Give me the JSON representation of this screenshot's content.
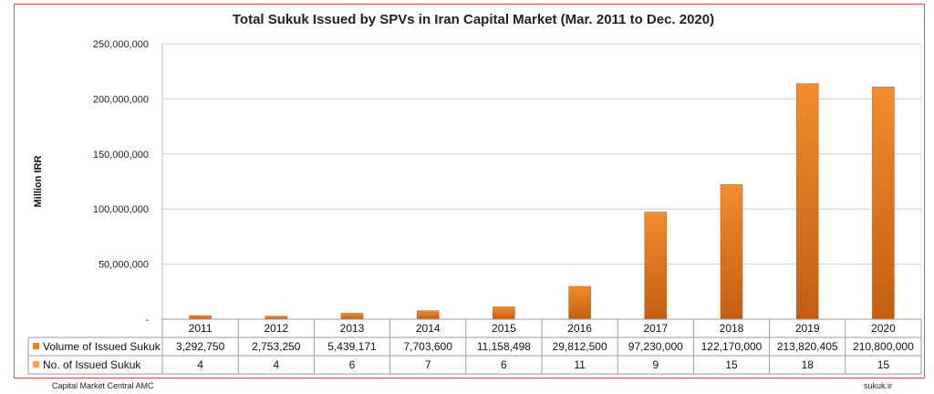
{
  "chart_data": {
    "type": "bar",
    "title": "Total Sukuk Issued by SPVs in Iran Capital Market (Mar. 2011 to Dec. 2020)",
    "ylabel": "Million IRR",
    "ylim": [
      0,
      250000000
    ],
    "yticks": [
      "-",
      "50,000,000",
      "100,000,000",
      "150,000,000",
      "200,000,000",
      "250,000,000"
    ],
    "ytick_values": [
      0,
      50000000,
      100000000,
      150000000,
      200000000,
      250000000
    ],
    "grid": true,
    "categories": [
      "2011",
      "2012",
      "2013",
      "2014",
      "2015",
      "2016",
      "2017",
      "2018",
      "2019",
      "2020"
    ],
    "series": [
      {
        "name": "Volume of Issued Sukuk",
        "values": [
          3292750,
          2753250,
          5439171,
          7703600,
          11158498,
          29812500,
          97230000,
          122170000,
          213820405,
          210800000
        ],
        "labels": [
          "3,292,750",
          "2,753,250",
          "5,439,171",
          "7,703,600",
          "11,158,498",
          "29,812,500",
          "97,230,000",
          "122,170,000",
          "213,820,405",
          "210,800,000"
        ],
        "color": "#e8822a"
      },
      {
        "name": "No. of Issued Sukuk",
        "values": [
          4,
          4,
          6,
          7,
          6,
          11,
          9,
          15,
          18,
          15
        ],
        "labels": [
          "4",
          "4",
          "6",
          "7",
          "6",
          "11",
          "9",
          "15",
          "18",
          "15"
        ],
        "color": "#f2a460"
      }
    ],
    "data_table": true
  },
  "footer": {
    "left": "Capital Market Central AMC",
    "right": "sukuk.ir"
  }
}
